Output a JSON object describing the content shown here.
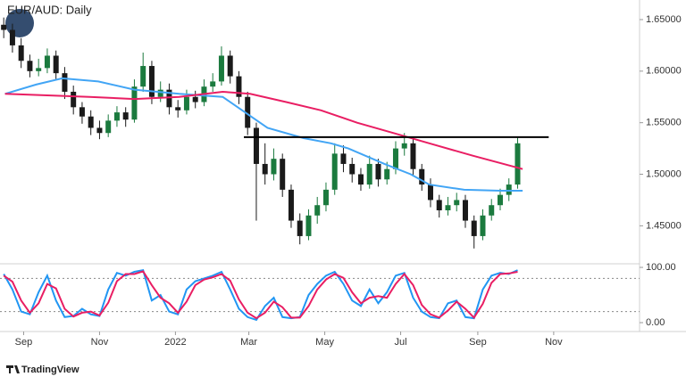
{
  "chart_data": [
    {
      "type": "candlestick",
      "title": "EUR/AUD: Daily",
      "x": [
        3,
        10,
        17,
        24,
        31,
        38,
        45,
        52,
        59,
        66,
        73,
        80,
        87,
        94,
        101,
        108,
        115,
        122,
        129,
        136,
        143,
        150,
        157,
        164,
        171,
        178,
        185,
        192,
        199,
        206,
        213,
        220,
        227,
        234,
        241,
        248,
        255,
        262,
        269,
        276,
        283,
        290,
        297,
        304,
        311,
        318,
        325,
        332,
        339,
        346,
        353,
        360,
        367,
        374,
        381,
        388,
        395,
        402,
        409,
        416
      ],
      "open": [
        1.645,
        1.64,
        1.625,
        1.61,
        1.6,
        1.603,
        1.615,
        1.598,
        1.58,
        1.565,
        1.556,
        1.545,
        1.54,
        1.552,
        1.56,
        1.553,
        1.585,
        1.605,
        1.575,
        1.582,
        1.565,
        1.562,
        1.575,
        1.57,
        1.585,
        1.59,
        1.615,
        1.595,
        1.575,
        1.545,
        1.51,
        1.5,
        1.515,
        1.485,
        1.455,
        1.44,
        1.46,
        1.47,
        1.485,
        1.52,
        1.51,
        1.5,
        1.49,
        1.51,
        1.495,
        1.505,
        1.525,
        1.53,
        1.505,
        1.49,
        1.475,
        1.465,
        1.47,
        1.475,
        1.455,
        1.44,
        1.46,
        1.47,
        1.48,
        1.49
      ],
      "high": [
        1.652,
        1.646,
        1.632,
        1.616,
        1.612,
        1.622,
        1.62,
        1.604,
        1.586,
        1.57,
        1.562,
        1.552,
        1.558,
        1.566,
        1.565,
        1.592,
        1.618,
        1.61,
        1.59,
        1.588,
        1.572,
        1.582,
        1.581,
        1.592,
        1.598,
        1.624,
        1.62,
        1.6,
        1.58,
        1.55,
        1.53,
        1.525,
        1.52,
        1.49,
        1.462,
        1.466,
        1.478,
        1.492,
        1.53,
        1.528,
        1.516,
        1.506,
        1.518,
        1.515,
        1.512,
        1.532,
        1.54,
        1.535,
        1.51,
        1.496,
        1.48,
        1.478,
        1.482,
        1.48,
        1.46,
        1.466,
        1.476,
        1.486,
        1.496,
        1.536
      ],
      "low": [
        1.632,
        1.618,
        1.603,
        1.594,
        1.595,
        1.598,
        1.592,
        1.573,
        1.558,
        1.549,
        1.538,
        1.534,
        1.536,
        1.546,
        1.546,
        1.55,
        1.58,
        1.568,
        1.57,
        1.558,
        1.555,
        1.558,
        1.564,
        1.566,
        1.58,
        1.586,
        1.588,
        1.568,
        1.538,
        1.455,
        1.49,
        1.494,
        1.478,
        1.448,
        1.432,
        1.436,
        1.452,
        1.464,
        1.48,
        1.502,
        1.492,
        1.484,
        1.486,
        1.488,
        1.49,
        1.5,
        1.518,
        1.498,
        1.484,
        1.468,
        1.458,
        1.46,
        1.464,
        1.448,
        1.428,
        1.436,
        1.455,
        1.465,
        1.474,
        1.486
      ],
      "close": [
        1.64,
        1.625,
        1.61,
        1.6,
        1.603,
        1.615,
        1.598,
        1.58,
        1.565,
        1.556,
        1.545,
        1.54,
        1.552,
        1.56,
        1.553,
        1.585,
        1.605,
        1.575,
        1.582,
        1.565,
        1.562,
        1.575,
        1.57,
        1.585,
        1.59,
        1.615,
        1.595,
        1.575,
        1.545,
        1.51,
        1.5,
        1.515,
        1.485,
        1.455,
        1.44,
        1.46,
        1.47,
        1.485,
        1.52,
        1.51,
        1.5,
        1.49,
        1.51,
        1.495,
        1.505,
        1.525,
        1.53,
        1.505,
        1.49,
        1.475,
        1.465,
        1.47,
        1.475,
        1.455,
        1.44,
        1.46,
        1.47,
        1.48,
        1.49,
        1.53
      ],
      "up_color": "#1b7a3e",
      "down_color": "#1a1a1a",
      "lines": [
        {
          "color": "#42a5f5",
          "x": [
            4,
            29,
            50,
            79,
            108,
            144,
            179,
            197,
            215,
            244,
            266,
            280,
            309,
            330,
            345,
            373,
            402,
            420
          ],
          "values": [
            1.578,
            1.587,
            1.593,
            1.59,
            1.582,
            1.578,
            1.575,
            1.56,
            1.545,
            1.535,
            1.53,
            1.525,
            1.51,
            1.5,
            1.49,
            1.485,
            1.484,
            1.484
          ]
        },
        {
          "color": "#e91e63",
          "x": [
            4,
            72,
            108,
            144,
            179,
            201,
            230,
            258,
            287,
            316,
            345,
            380,
            420
          ],
          "values": [
            1.578,
            1.575,
            1.573,
            1.575,
            1.58,
            1.578,
            1.57,
            1.562,
            1.55,
            1.54,
            1.53,
            1.518,
            1.505
          ]
        }
      ],
      "level": {
        "value": 1.536,
        "x": [
          196,
          441
        ],
        "color": "#000000"
      },
      "xlim": [
        0,
        514
      ],
      "ylim": [
        1.414,
        1.669
      ],
      "yticks": [
        {
          "value": 1.45,
          "label": "1.45000"
        },
        {
          "value": 1.5,
          "label": "1.50000"
        },
        {
          "value": 1.55,
          "label": "1.55000"
        },
        {
          "value": 1.6,
          "label": "1.60000"
        },
        {
          "value": 1.65,
          "label": "1.65000"
        }
      ]
    },
    {
      "type": "line",
      "series": [
        {
          "color": "#2196f3",
          "values": [
            88,
            60,
            20,
            15,
            55,
            85,
            40,
            10,
            12,
            25,
            15,
            12,
            60,
            90,
            85,
            92,
            95,
            40,
            50,
            20,
            15,
            60,
            75,
            80,
            85,
            92,
            60,
            25,
            10,
            5,
            30,
            45,
            10,
            8,
            10,
            50,
            70,
            85,
            92,
            70,
            40,
            30,
            60,
            35,
            55,
            85,
            90,
            45,
            20,
            10,
            8,
            35,
            40,
            10,
            8,
            60,
            85,
            90,
            88,
            95
          ]
        },
        {
          "color": "#e91e63",
          "values": [
            85,
            74,
            40,
            18,
            35,
            70,
            62,
            25,
            11,
            18,
            20,
            13,
            36,
            75,
            88,
            88,
            93,
            68,
            45,
            35,
            18,
            38,
            68,
            78,
            82,
            88,
            76,
            42,
            18,
            8,
            18,
            38,
            28,
            9,
            9,
            30,
            60,
            78,
            88,
            81,
            55,
            35,
            45,
            48,
            45,
            70,
            88,
            68,
            32,
            15,
            9,
            22,
            38,
            25,
            9,
            34,
            72,
            88,
            89,
            92
          ]
        }
      ],
      "levels": [
        20,
        80
      ],
      "xlim": [
        0,
        514
      ],
      "ylim": [
        -16.1,
        106.5
      ],
      "yticks": [
        {
          "value": 0,
          "label": "0.00"
        },
        {
          "value": 100,
          "label": "100.00"
        }
      ],
      "xticks": [
        {
          "value": 19,
          "label": "Sep"
        },
        {
          "value": 80,
          "label": "Nov"
        },
        {
          "value": 141,
          "label": "2022"
        },
        {
          "value": 200,
          "label": "Mar"
        },
        {
          "value": 261,
          "label": "May"
        },
        {
          "value": 322,
          "label": "Jul"
        },
        {
          "value": 384,
          "label": "Sep"
        },
        {
          "value": 445,
          "label": "Nov"
        }
      ]
    }
  ],
  "footer": {
    "logo": "TradingView"
  }
}
